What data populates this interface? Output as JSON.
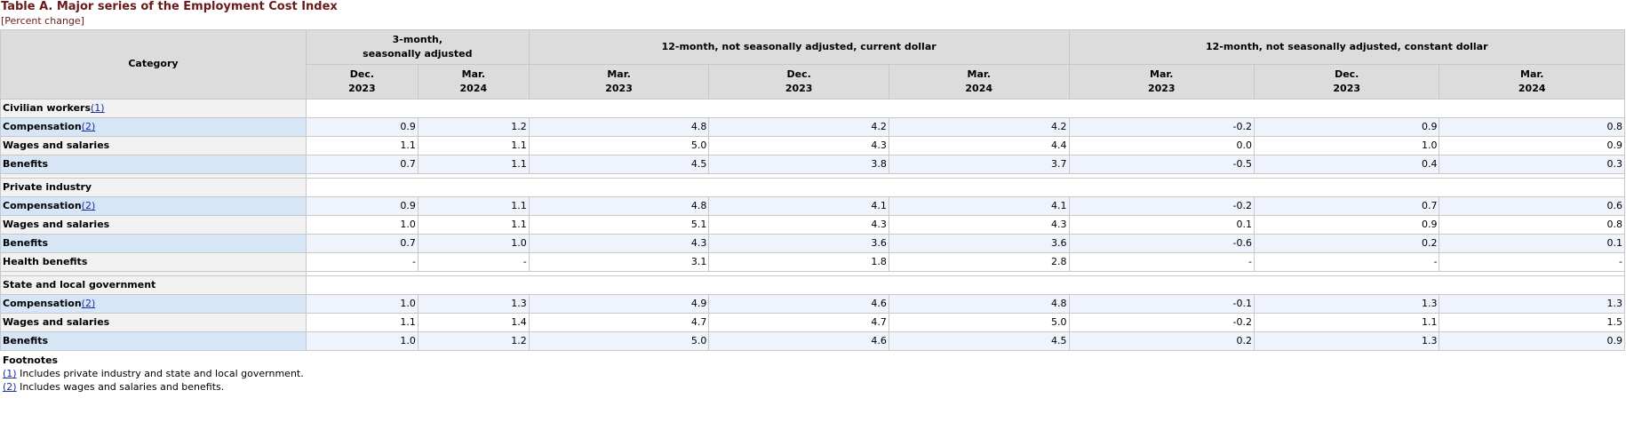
{
  "title": "Table A. Major series of the Employment Cost Index",
  "subtitle": "[Percent change]",
  "header": {
    "category": "Category",
    "groups": [
      {
        "line1": "3-month,",
        "line2": "seasonally adjusted"
      },
      {
        "line1": "12-month, not seasonally adjusted, current dollar",
        "line2": ""
      },
      {
        "line1": "12-month, not seasonally adjusted, constant dollar",
        "line2": ""
      }
    ],
    "columns": [
      {
        "month": "Dec.",
        "year": "2023"
      },
      {
        "month": "Mar.",
        "year": "2024"
      },
      {
        "month": "Mar.",
        "year": "2023"
      },
      {
        "month": "Dec.",
        "year": "2023"
      },
      {
        "month": "Mar.",
        "year": "2024"
      },
      {
        "month": "Mar.",
        "year": "2023"
      },
      {
        "month": "Dec.",
        "year": "2023"
      },
      {
        "month": "Mar.",
        "year": "2024"
      }
    ]
  },
  "sections": [
    {
      "name": "Civilian workers",
      "footnote": "(1)",
      "rows": [
        {
          "label": "Compensation",
          "footnote": "(2)",
          "values": [
            "0.9",
            "1.2",
            "4.8",
            "4.2",
            "4.2",
            "-0.2",
            "0.9",
            "0.8"
          ]
        },
        {
          "label": "Wages and salaries",
          "footnote": "",
          "values": [
            "1.1",
            "1.1",
            "5.0",
            "4.3",
            "4.4",
            "0.0",
            "1.0",
            "0.9"
          ]
        },
        {
          "label": "Benefits",
          "footnote": "",
          "values": [
            "0.7",
            "1.1",
            "4.5",
            "3.8",
            "3.7",
            "-0.5",
            "0.4",
            "0.3"
          ]
        }
      ]
    },
    {
      "name": "Private industry",
      "footnote": "",
      "rows": [
        {
          "label": "Compensation",
          "footnote": "(2)",
          "values": [
            "0.9",
            "1.1",
            "4.8",
            "4.1",
            "4.1",
            "-0.2",
            "0.7",
            "0.6"
          ]
        },
        {
          "label": "Wages and salaries",
          "footnote": "",
          "values": [
            "1.0",
            "1.1",
            "5.1",
            "4.3",
            "4.3",
            "0.1",
            "0.9",
            "0.8"
          ]
        },
        {
          "label": "Benefits",
          "footnote": "",
          "values": [
            "0.7",
            "1.0",
            "4.3",
            "3.6",
            "3.6",
            "-0.6",
            "0.2",
            "0.1"
          ]
        },
        {
          "label": "Health benefits",
          "footnote": "",
          "values": [
            "-",
            "-",
            "3.1",
            "1.8",
            "2.8",
            "-",
            "-",
            "-"
          ]
        }
      ]
    },
    {
      "name": "State and local government",
      "footnote": "",
      "rows": [
        {
          "label": "Compensation",
          "footnote": "(2)",
          "values": [
            "1.0",
            "1.3",
            "4.9",
            "4.6",
            "4.8",
            "-0.1",
            "1.3",
            "1.3"
          ]
        },
        {
          "label": "Wages and salaries",
          "footnote": "",
          "values": [
            "1.1",
            "1.4",
            "4.7",
            "4.7",
            "5.0",
            "-0.2",
            "1.1",
            "1.5"
          ]
        },
        {
          "label": "Benefits",
          "footnote": "",
          "values": [
            "1.0",
            "1.2",
            "5.0",
            "4.6",
            "4.5",
            "0.2",
            "1.3",
            "0.9"
          ]
        }
      ]
    }
  ],
  "footnotes": {
    "heading": "Footnotes",
    "items": [
      {
        "mark": "(1)",
        "text": " Includes private industry and state and local government."
      },
      {
        "mark": "(2)",
        "text": " Includes wages and salaries and benefits."
      }
    ]
  }
}
